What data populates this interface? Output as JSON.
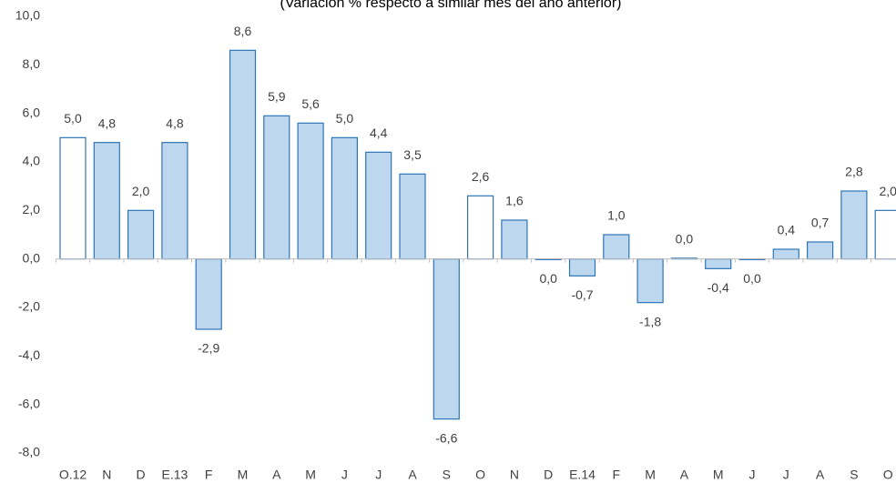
{
  "chart_data": {
    "type": "bar",
    "subtitle": "(Variación % respecto a similar mes del año anterior)",
    "categories": [
      "O.12",
      "N",
      "D",
      "E.13",
      "F",
      "M",
      "A",
      "M",
      "J",
      "J",
      "A",
      "S",
      "O",
      "N",
      "D",
      "E.14",
      "F",
      "M",
      "A",
      "M",
      "J",
      "J",
      "A",
      "S",
      "O"
    ],
    "values": [
      5.0,
      4.8,
      2.0,
      4.8,
      -2.9,
      8.6,
      5.9,
      5.6,
      5.0,
      4.4,
      3.5,
      -6.6,
      2.6,
      1.6,
      -0.03,
      -0.7,
      1.0,
      -1.8,
      0.03,
      -0.4,
      -0.03,
      0.4,
      0.7,
      2.8,
      2.0
    ],
    "value_labels": [
      "5,0",
      "4,8",
      "2,0",
      "4,8",
      "-2,9",
      "8,6",
      "5,9",
      "5,6",
      "5,0",
      "4,4",
      "3,5",
      "-6,6",
      "2,6",
      "1,6",
      "0,0",
      "-0,7",
      "1,0",
      "-1,8",
      "0,0",
      "-0,4",
      "0,0",
      "0,4",
      "0,7",
      "2,8",
      "2,0"
    ],
    "colors": [
      "#ffffff",
      "#bdd7ee",
      "#bdd7ee",
      "#bdd7ee",
      "#bdd7ee",
      "#bdd7ee",
      "#bdd7ee",
      "#bdd7ee",
      "#bdd7ee",
      "#bdd7ee",
      "#bdd7ee",
      "#bdd7ee",
      "#ffffff",
      "#bdd7ee",
      "#bdd7ee",
      "#bdd7ee",
      "#bdd7ee",
      "#bdd7ee",
      "#bdd7ee",
      "#bdd7ee",
      "#bdd7ee",
      "#bdd7ee",
      "#bdd7ee",
      "#bdd7ee",
      "#ffffff"
    ],
    "edge_color": "#2e75b6",
    "ylim": [
      -8,
      10
    ],
    "yticks": [
      {
        "value": -8,
        "label": "-8,0"
      },
      {
        "value": -6,
        "label": "-6,0"
      },
      {
        "value": -4,
        "label": "-4,0"
      },
      {
        "value": -2,
        "label": "-2,0"
      },
      {
        "value": 0,
        "label": "0,0"
      },
      {
        "value": 2,
        "label": "2,0"
      },
      {
        "value": 4,
        "label": "4,0"
      },
      {
        "value": 6,
        "label": "6,0"
      },
      {
        "value": 8,
        "label": "8,0"
      },
      {
        "value": 10,
        "label": "10,0"
      }
    ]
  }
}
